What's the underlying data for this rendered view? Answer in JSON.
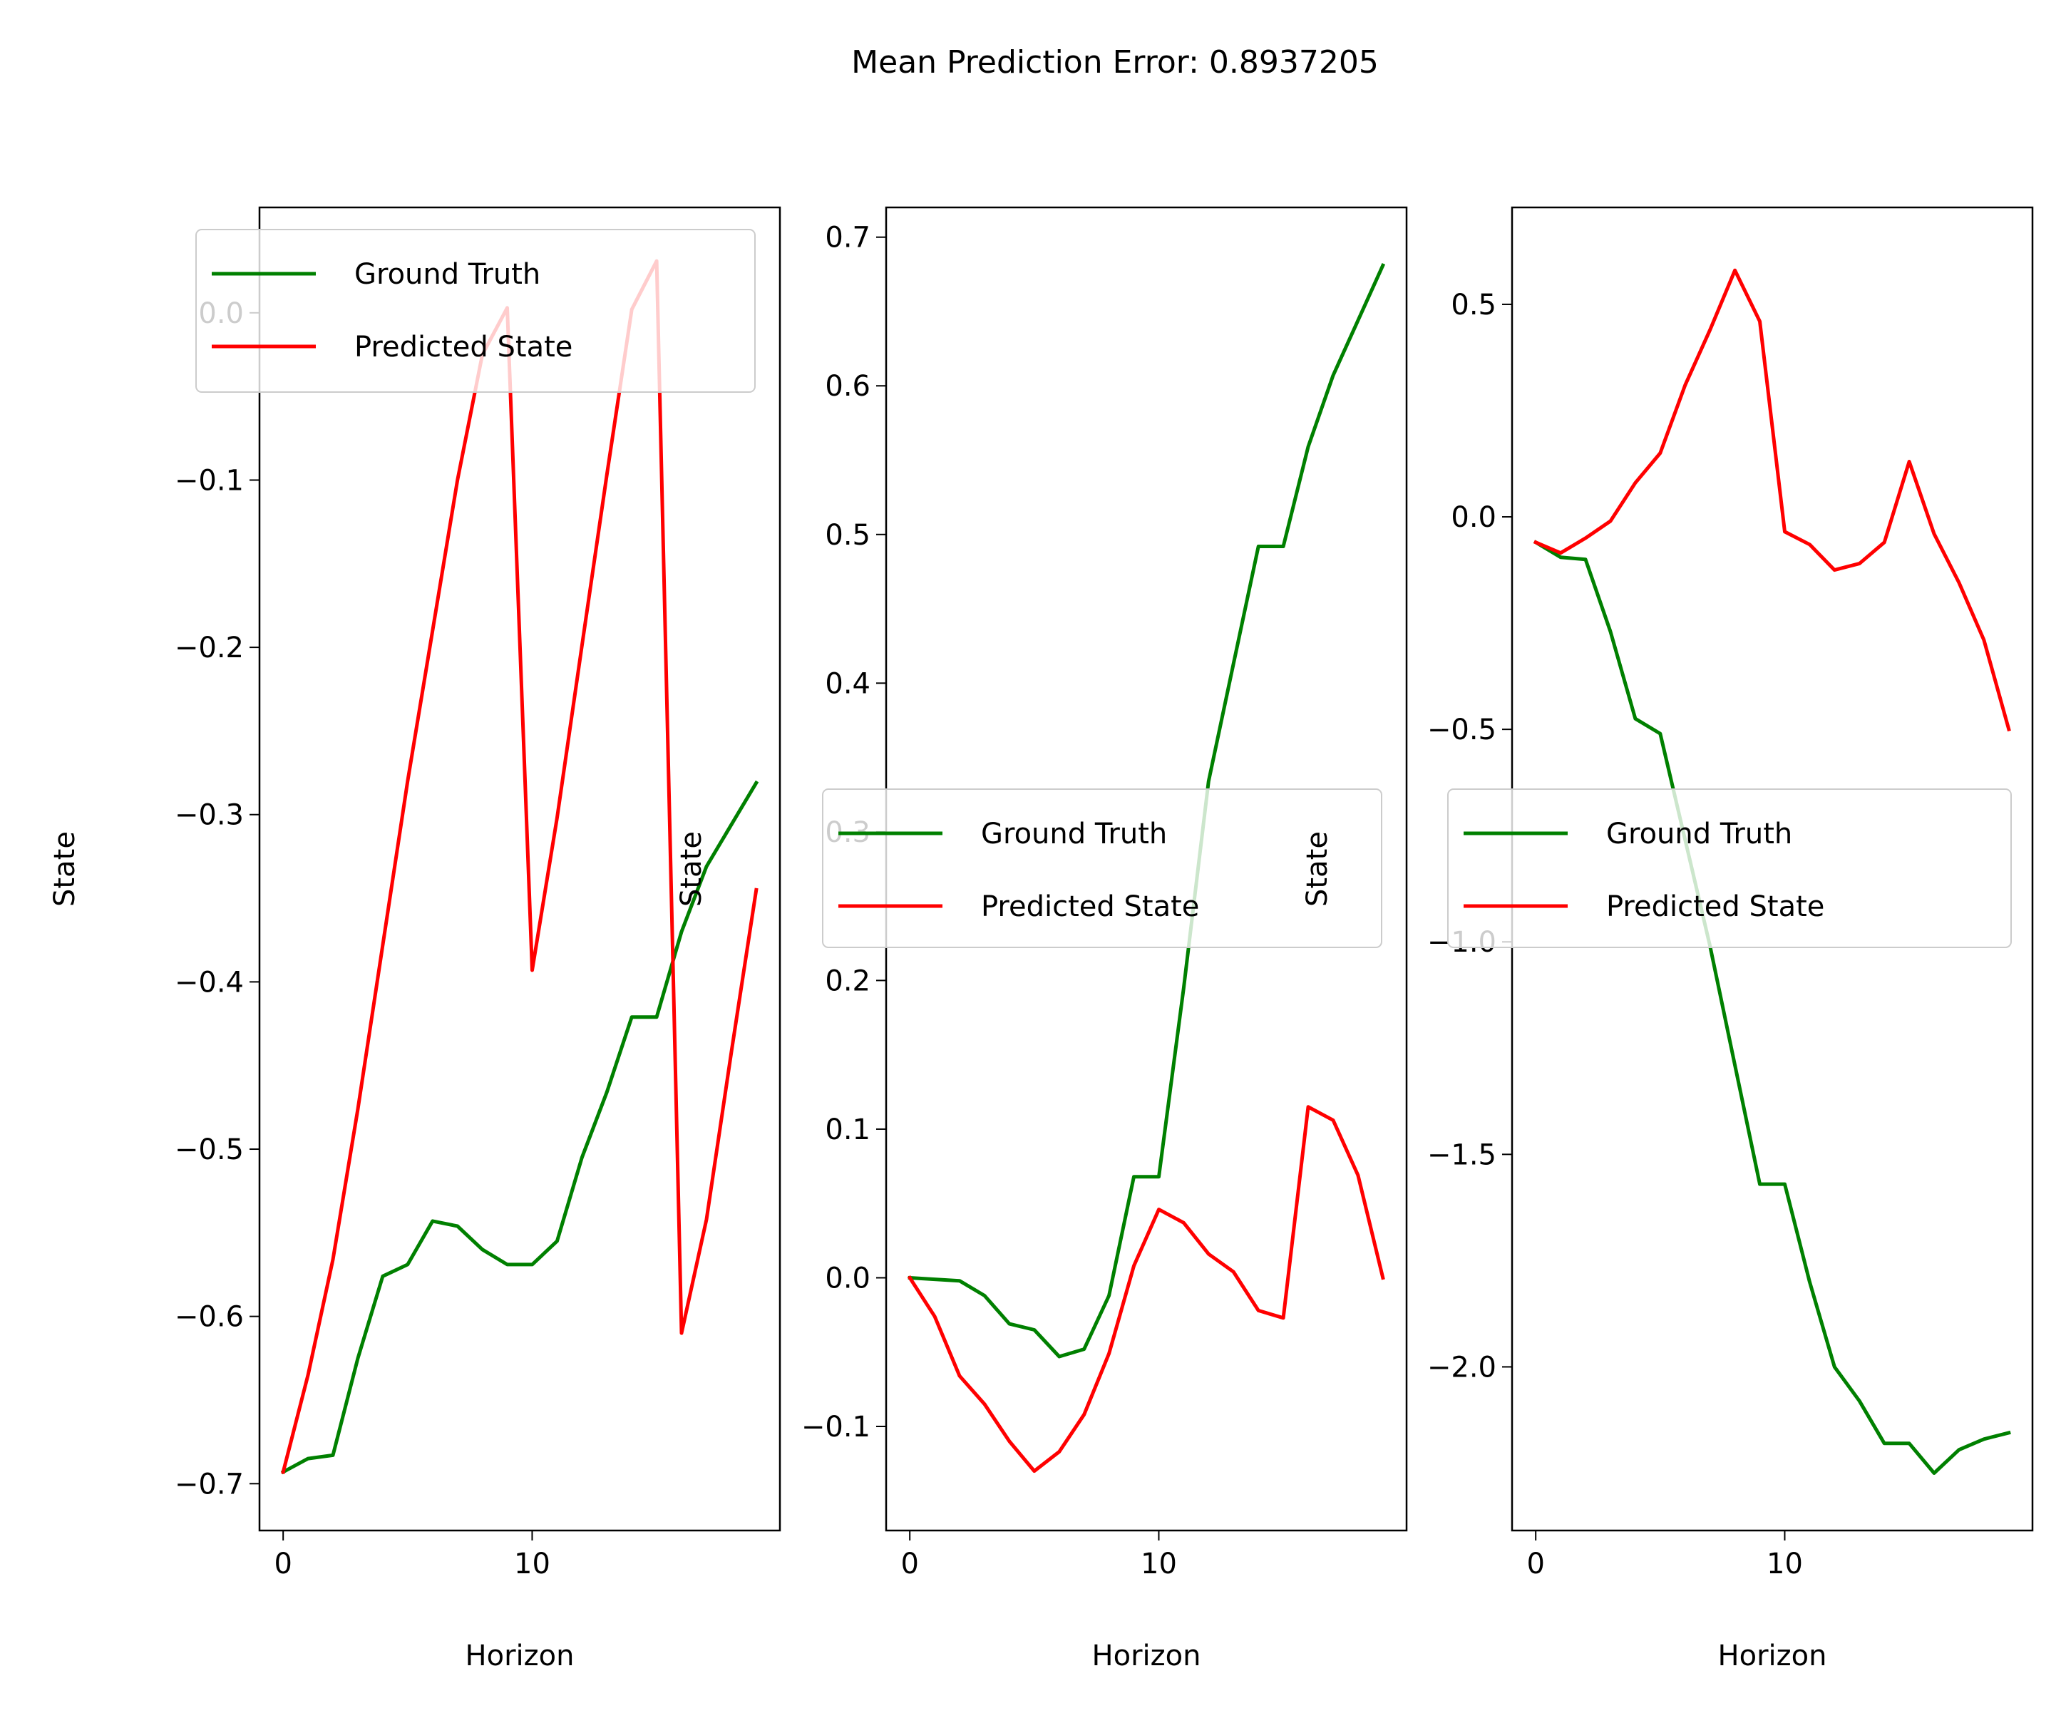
{
  "figure": {
    "title": "Mean Prediction Error: 0.8937205"
  },
  "chart_data": [
    {
      "type": "line",
      "xlabel": "Horizon",
      "ylabel": "State",
      "xlim": [
        -0.95,
        19.95
      ],
      "ylim": [
        -0.728,
        0.063
      ],
      "xticks": [
        0,
        10
      ],
      "xtick_labels": [
        "0",
        "10"
      ],
      "yticks": [
        0.0,
        -0.1,
        -0.2,
        -0.3,
        -0.4,
        -0.5,
        -0.6,
        -0.7
      ],
      "ytick_labels": [
        "0.0",
        "−0.1",
        "−0.2",
        "−0.3",
        "−0.4",
        "−0.5",
        "−0.6",
        "−0.7"
      ],
      "legend": "upper center",
      "x": [
        0,
        1,
        2,
        3,
        4,
        5,
        6,
        7,
        8,
        9,
        10,
        11,
        12,
        13,
        14,
        15,
        16,
        17,
        18,
        19
      ],
      "series": [
        {
          "name": "Ground Truth",
          "color": "#008000",
          "values": [
            -0.693,
            -0.685,
            -0.683,
            -0.625,
            -0.576,
            -0.569,
            -0.543,
            -0.546,
            -0.56,
            -0.569,
            -0.569,
            -0.555,
            -0.505,
            -0.466,
            -0.421,
            -0.421,
            -0.37,
            -0.331,
            -0.306,
            -0.281
          ]
        },
        {
          "name": "Predicted State",
          "color": "#ff0000",
          "values": [
            -0.693,
            -0.635,
            -0.566,
            -0.476,
            -0.378,
            -0.28,
            -0.19,
            -0.1,
            -0.025,
            0.003,
            -0.393,
            -0.302,
            -0.199,
            -0.097,
            0.002,
            0.031,
            -0.61,
            -0.542,
            -0.442,
            -0.345
          ]
        }
      ]
    },
    {
      "type": "line",
      "xlabel": "Horizon",
      "ylabel": "State",
      "xlim": [
        -0.95,
        19.95
      ],
      "ylim": [
        -0.17,
        0.72
      ],
      "xticks": [
        0,
        10
      ],
      "xtick_labels": [
        "0",
        "10"
      ],
      "yticks": [
        0.7,
        0.6,
        0.5,
        0.4,
        0.3,
        0.2,
        0.1,
        0.0,
        -0.1
      ],
      "ytick_labels": [
        "0.7",
        "0.6",
        "0.5",
        "0.4",
        "0.3",
        "0.2",
        "0.1",
        "0.0",
        "−0.1"
      ],
      "legend": "center right",
      "x": [
        0,
        1,
        2,
        3,
        4,
        5,
        6,
        7,
        8,
        9,
        10,
        11,
        12,
        13,
        14,
        15,
        16,
        17,
        18,
        19
      ],
      "series": [
        {
          "name": "Ground Truth",
          "color": "#008000",
          "values": [
            0.0,
            -0.001,
            -0.002,
            -0.012,
            -0.031,
            -0.035,
            -0.053,
            -0.048,
            -0.012,
            0.068,
            0.068,
            0.195,
            0.334,
            0.413,
            0.492,
            0.492,
            0.559,
            0.607,
            0.644,
            0.681
          ]
        },
        {
          "name": "Predicted State",
          "color": "#ff0000",
          "values": [
            0.0,
            -0.026,
            -0.066,
            -0.085,
            -0.11,
            -0.13,
            -0.117,
            -0.092,
            -0.051,
            0.008,
            0.046,
            0.037,
            0.016,
            0.004,
            -0.022,
            -0.027,
            0.115,
            0.106,
            0.069,
            0.0
          ]
        }
      ]
    },
    {
      "type": "line",
      "xlabel": "Horizon",
      "ylabel": "State",
      "xlim": [
        -0.95,
        19.95
      ],
      "ylim": [
        -2.385,
        0.728
      ],
      "xticks": [
        0,
        10
      ],
      "xtick_labels": [
        "0",
        "10"
      ],
      "yticks": [
        0.5,
        0.0,
        -0.5,
        -1.0,
        -1.5,
        -2.0
      ],
      "ytick_labels": [
        "0.5",
        "0.0",
        "−0.5",
        "−1.0",
        "−1.5",
        "−2.0"
      ],
      "legend": "center right",
      "x": [
        0,
        1,
        2,
        3,
        4,
        5,
        6,
        7,
        8,
        9,
        10,
        11,
        12,
        13,
        14,
        15,
        16,
        17,
        18,
        19
      ],
      "series": [
        {
          "name": "Ground Truth",
          "color": "#008000",
          "values": [
            -0.06,
            -0.095,
            -0.1,
            -0.27,
            -0.475,
            -0.51,
            -0.76,
            -1.01,
            -1.29,
            -1.57,
            -1.57,
            -1.8,
            -2.0,
            -2.08,
            -2.18,
            -2.18,
            -2.25,
            -2.195,
            -2.17,
            -2.155
          ]
        },
        {
          "name": "Predicted State",
          "color": "#ff0000",
          "values": [
            -0.06,
            -0.085,
            -0.05,
            -0.01,
            0.08,
            0.15,
            0.31,
            0.44,
            0.58,
            0.46,
            -0.035,
            -0.065,
            -0.125,
            -0.11,
            -0.06,
            0.13,
            -0.04,
            -0.155,
            -0.29,
            -0.5
          ]
        }
      ]
    }
  ]
}
